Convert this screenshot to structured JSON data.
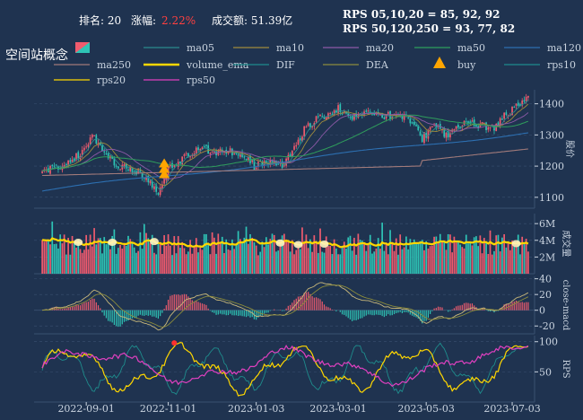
{
  "header": {
    "rank_label": "排名: 20",
    "change_label": "涨幅:",
    "change_value": "2.22%",
    "turnover": "成交额: 51.39亿",
    "rps_line1": "RPS 05,10,20 = 85, 92, 92",
    "rps_line2": "RPS 50,120,250 = 93, 77, 82"
  },
  "title": "空间站概念",
  "colors": {
    "background": "#1f3350",
    "up": "#ef5b6e",
    "down": "#2ec4b6",
    "change_value": "#ff4040",
    "volume_ema": "#ffd700",
    "buy": "#ffa500",
    "grid": "#3a5070",
    "axis_text": "#c9d3df"
  },
  "legend": [
    {
      "label": "ma05",
      "color": "#2a8c8c",
      "kind": "line",
      "bold": false
    },
    {
      "label": "ma10",
      "color": "#a08c3c",
      "kind": "line",
      "bold": false
    },
    {
      "label": "ma20",
      "color": "#8e5aa8",
      "kind": "line",
      "bold": false
    },
    {
      "label": "ma50",
      "color": "#2f9e5c",
      "kind": "line",
      "bold": false
    },
    {
      "label": "ma120",
      "color": "#2d6fb0",
      "kind": "line",
      "bold": false
    },
    {
      "label": "ma250",
      "color": "#a07a7a",
      "kind": "line",
      "bold": false
    },
    {
      "label": "volume_ema",
      "color": "#ffd700",
      "kind": "line",
      "bold": true
    },
    {
      "label": "DIF",
      "color": "#1f8c8c",
      "kind": "line",
      "bold": false
    },
    {
      "label": "DEA",
      "color": "#8c8c3c",
      "kind": "line",
      "bold": false
    },
    {
      "label": "buy",
      "color": "#ffa500",
      "kind": "triangle",
      "bold": false
    },
    {
      "label": "rps10",
      "color": "#1f8c8c",
      "kind": "line",
      "bold": false
    },
    {
      "label": "rps20",
      "color": "#ffd700",
      "kind": "line",
      "bold": false
    },
    {
      "label": "rps50",
      "color": "#e040c0",
      "kind": "line",
      "bold": false
    }
  ],
  "axes": {
    "price": {
      "label": "股价",
      "ticks": [
        1100,
        1200,
        1300,
        1400
      ],
      "range": [
        1065,
        1445
      ]
    },
    "volume": {
      "label": "成交量",
      "ticks": [
        {
          "v": 2,
          "t": "2M"
        },
        {
          "v": 4,
          "t": "4M"
        },
        {
          "v": 6,
          "t": "6M"
        }
      ],
      "range": [
        0,
        7.2
      ]
    },
    "macd": {
      "label": "close-macd",
      "ticks": [
        {
          "v": 40,
          "t": "40"
        },
        {
          "v": 20,
          "t": "20"
        },
        {
          "v": 0,
          "t": "0"
        },
        {
          "v": -20,
          "t": "-20"
        }
      ],
      "range": [
        -30,
        43
      ]
    },
    "rps": {
      "label": "RPS",
      "ticks": [
        {
          "v": 100,
          "t": "100"
        },
        {
          "v": 50,
          "t": "50"
        }
      ],
      "range": [
        0,
        110
      ]
    },
    "dates": [
      "2022-09-01",
      "2022-11-01",
      "2023-01-03",
      "2023-03-01",
      "2023-05-03",
      "2023-07-03"
    ]
  },
  "chart_data": {
    "type": "line",
    "title": "空间站概念",
    "panels": [
      "candlestick",
      "volume",
      "macd",
      "rps"
    ],
    "date_ticks": [
      "2022-09-01",
      "2022-11-01",
      "2023-01-03",
      "2023-03-01",
      "2023-05-03",
      "2023-07-03"
    ],
    "close_anchors": [
      {
        "i": 0,
        "v": 1180
      },
      {
        "i": 8,
        "v": 1195
      },
      {
        "i": 20,
        "v": 1245
      },
      {
        "i": 25,
        "v": 1305
      },
      {
        "i": 32,
        "v": 1235
      },
      {
        "i": 40,
        "v": 1195
      },
      {
        "i": 50,
        "v": 1175
      },
      {
        "i": 58,
        "v": 1110
      },
      {
        "i": 63,
        "v": 1190
      },
      {
        "i": 70,
        "v": 1225
      },
      {
        "i": 78,
        "v": 1260
      },
      {
        "i": 86,
        "v": 1245
      },
      {
        "i": 92,
        "v": 1250
      },
      {
        "i": 100,
        "v": 1240
      },
      {
        "i": 106,
        "v": 1200
      },
      {
        "i": 112,
        "v": 1215
      },
      {
        "i": 120,
        "v": 1200
      },
      {
        "i": 126,
        "v": 1260
      },
      {
        "i": 132,
        "v": 1330
      },
      {
        "i": 140,
        "v": 1360
      },
      {
        "i": 148,
        "v": 1385
      },
      {
        "i": 155,
        "v": 1360
      },
      {
        "i": 162,
        "v": 1375
      },
      {
        "i": 170,
        "v": 1360
      },
      {
        "i": 178,
        "v": 1365
      },
      {
        "i": 185,
        "v": 1340
      },
      {
        "i": 190,
        "v": 1290
      },
      {
        "i": 196,
        "v": 1330
      },
      {
        "i": 202,
        "v": 1300
      },
      {
        "i": 208,
        "v": 1320
      },
      {
        "i": 214,
        "v": 1345
      },
      {
        "i": 220,
        "v": 1330
      },
      {
        "i": 226,
        "v": 1320
      },
      {
        "i": 232,
        "v": 1370
      },
      {
        "i": 238,
        "v": 1390
      },
      {
        "i": 243,
        "v": 1425
      }
    ],
    "price_range": [
      1065,
      1445
    ],
    "volume_range_millions": [
      0,
      7.2
    ],
    "buy_signals": [
      {
        "i": 61,
        "price": 1150
      }
    ],
    "rps_latest": {
      "rps05": 85,
      "rps10": 92,
      "rps20": 92,
      "rps50": 93,
      "rps120": 77,
      "rps250": 82
    },
    "turnover": "51.39亿",
    "change_percent": 2.22,
    "rank": 20
  }
}
